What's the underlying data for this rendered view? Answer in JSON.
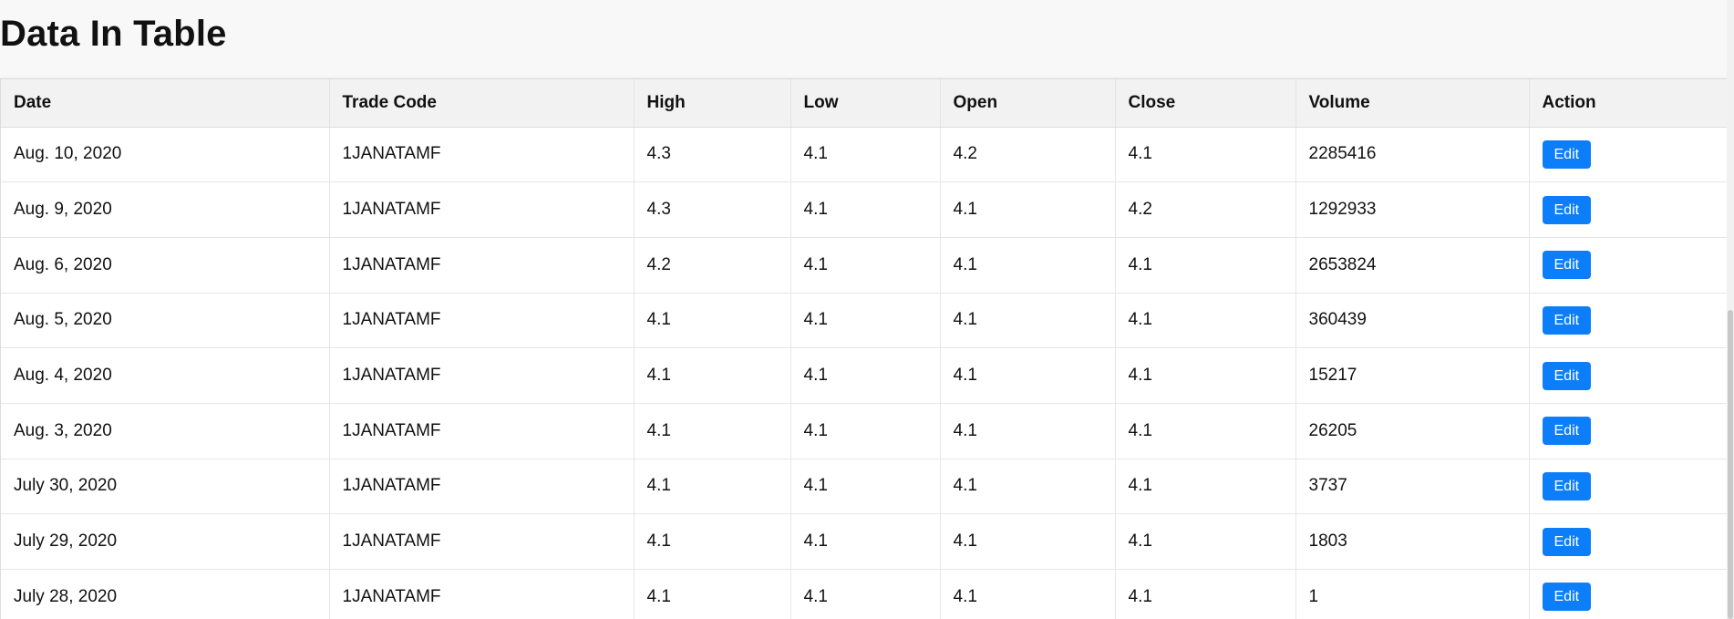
{
  "page": {
    "title": "Data In Table"
  },
  "table": {
    "headers": [
      "Date",
      "Trade Code",
      "High",
      "Low",
      "Open",
      "Close",
      "Volume",
      "Action"
    ],
    "edit_label": "Edit",
    "rows": [
      {
        "date": "Aug. 10, 2020",
        "trade_code": "1JANATAMF",
        "high": "4.3",
        "low": "4.1",
        "open": "4.2",
        "close": "4.1",
        "volume": "2285416"
      },
      {
        "date": "Aug. 9, 2020",
        "trade_code": "1JANATAMF",
        "high": "4.3",
        "low": "4.1",
        "open": "4.1",
        "close": "4.2",
        "volume": "1292933"
      },
      {
        "date": "Aug. 6, 2020",
        "trade_code": "1JANATAMF",
        "high": "4.2",
        "low": "4.1",
        "open": "4.1",
        "close": "4.1",
        "volume": "2653824"
      },
      {
        "date": "Aug. 5, 2020",
        "trade_code": "1JANATAMF",
        "high": "4.1",
        "low": "4.1",
        "open": "4.1",
        "close": "4.1",
        "volume": "360439"
      },
      {
        "date": "Aug. 4, 2020",
        "trade_code": "1JANATAMF",
        "high": "4.1",
        "low": "4.1",
        "open": "4.1",
        "close": "4.1",
        "volume": "15217"
      },
      {
        "date": "Aug. 3, 2020",
        "trade_code": "1JANATAMF",
        "high": "4.1",
        "low": "4.1",
        "open": "4.1",
        "close": "4.1",
        "volume": "26205"
      },
      {
        "date": "July 30, 2020",
        "trade_code": "1JANATAMF",
        "high": "4.1",
        "low": "4.1",
        "open": "4.1",
        "close": "4.1",
        "volume": "3737"
      },
      {
        "date": "July 29, 2020",
        "trade_code": "1JANATAMF",
        "high": "4.1",
        "low": "4.1",
        "open": "4.1",
        "close": "4.1",
        "volume": "1803"
      },
      {
        "date": "July 28, 2020",
        "trade_code": "1JANATAMF",
        "high": "4.1",
        "low": "4.1",
        "open": "4.1",
        "close": "4.1",
        "volume": "1"
      }
    ]
  },
  "colors": {
    "edit_button": "#0d7ef9",
    "header_background": "#f2f2f2",
    "page_background": "#f8f8f8"
  }
}
